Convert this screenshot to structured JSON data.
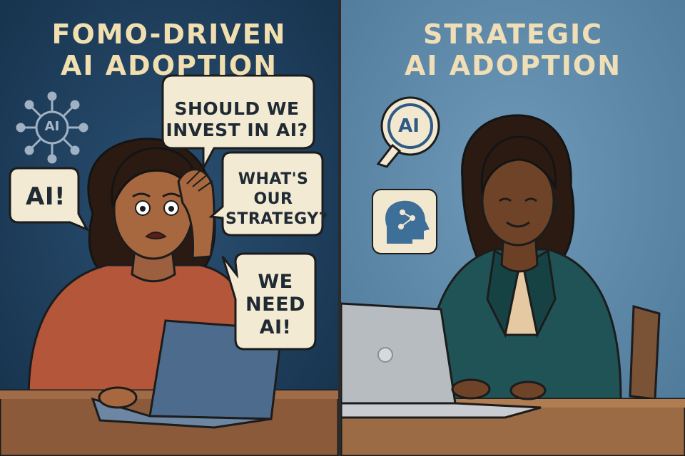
{
  "left_panel": {
    "title_line1": "FOMO-DRIVEN",
    "title_line2": "AI ADOPTION",
    "bubbles": {
      "invest": "SHOULD WE INVEST IN AI?",
      "strategy": "WHAT'S OUR STRATEGY?",
      "need": "WE NEED AI!",
      "ai": "AI!"
    },
    "network_icon_label": "AI"
  },
  "right_panel": {
    "title_line1": "STRATEGIC",
    "title_line2": "AI ADOPTION",
    "search_icon_label": "AI"
  },
  "colors": {
    "left_background": "#1f3d5a",
    "right_background": "#5b88a9",
    "title_text": "#f2dfb0",
    "bubble_fill": "#f3ead4",
    "ink": "#1f2a33"
  },
  "icons": [
    "ai-network-icon",
    "ai-search-icon",
    "brain-circuit-icon",
    "laptop-icon"
  ]
}
